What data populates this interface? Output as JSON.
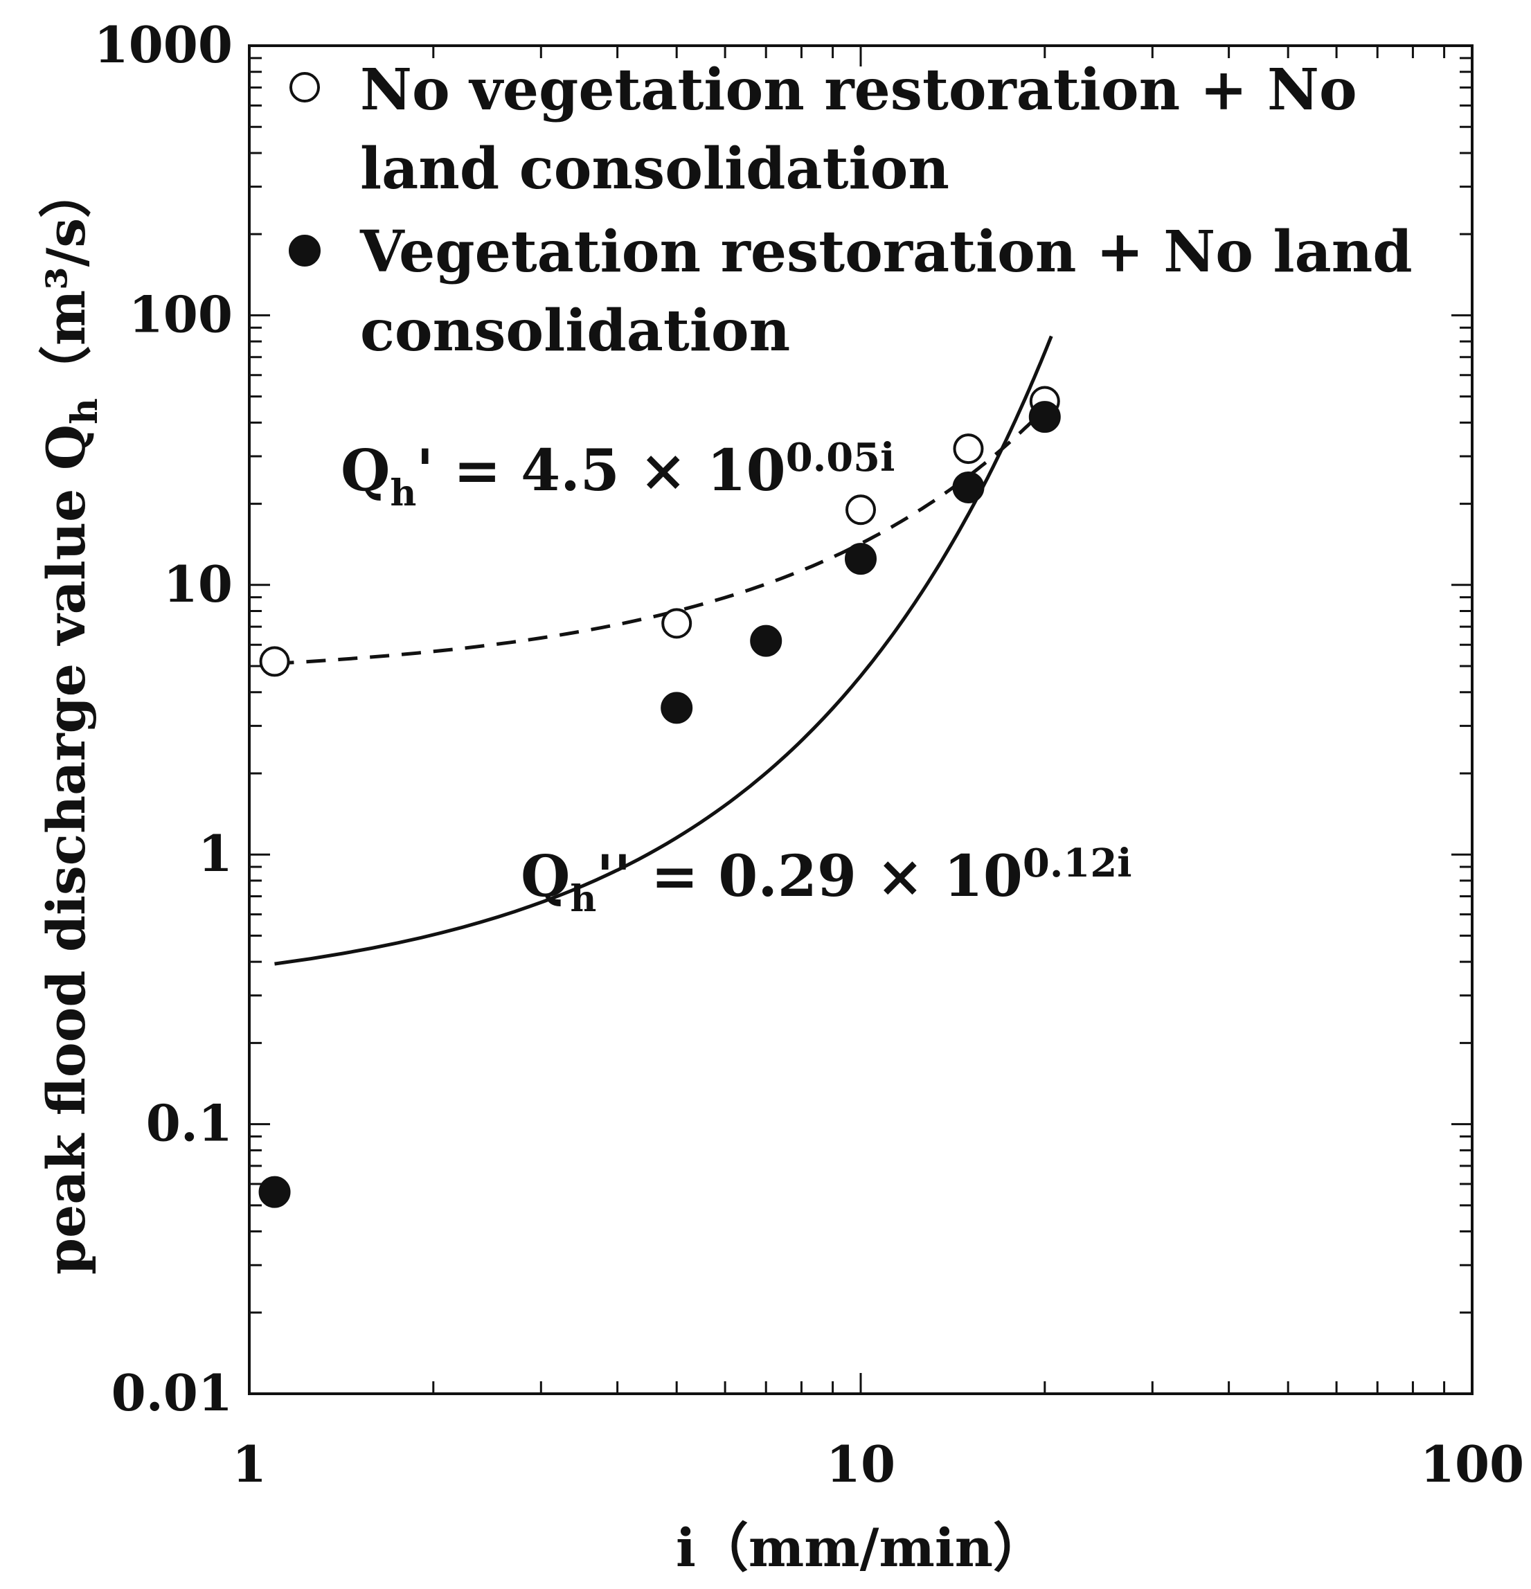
{
  "chart_data": {
    "type": "scatter",
    "x_scale": "log",
    "y_scale": "log",
    "xlim": [
      1,
      100
    ],
    "ylim": [
      0.01,
      1000
    ],
    "x_ticks": [
      {
        "value": 1,
        "label": "1"
      },
      {
        "value": 10,
        "label": "10"
      },
      {
        "value": 100,
        "label": "100"
      }
    ],
    "y_ticks": [
      {
        "value": 0.01,
        "label": "0.01"
      },
      {
        "value": 0.1,
        "label": "0.1"
      },
      {
        "value": 1,
        "label": "1"
      },
      {
        "value": 10,
        "label": "10"
      },
      {
        "value": 100,
        "label": "100"
      },
      {
        "value": 1000,
        "label": "1000"
      }
    ],
    "xlabel": "i（mm/min）",
    "ylabel": {
      "main": "peak flood discharge value  Q",
      "sub": "h",
      "units": "（m³/s）"
    },
    "grid": false,
    "legend_position": "top-left",
    "series": [
      {
        "name": "No vegetation restoration + No land consolidation",
        "legend_lines": [
          "No vegetation restoration  + No",
          "land consolidation"
        ],
        "marker": "open-circle",
        "color": "#111111",
        "points": [
          {
            "x": 1.1,
            "y": 5.2
          },
          {
            "x": 5,
            "y": 7.2
          },
          {
            "x": 10,
            "y": 19
          },
          {
            "x": 15,
            "y": 32
          },
          {
            "x": 20,
            "y": 48
          }
        ]
      },
      {
        "name": "Vegetation restoration + No land consolidation",
        "legend_lines": [
          "Vegetation restoration + No land",
          "consolidation"
        ],
        "marker": "filled-circle",
        "color": "#111111",
        "points": [
          {
            "x": 1.1,
            "y": 0.056
          },
          {
            "x": 5,
            "y": 3.5
          },
          {
            "x": 7,
            "y": 6.2
          },
          {
            "x": 10,
            "y": 12.5
          },
          {
            "x": 15,
            "y": 23
          },
          {
            "x": 20,
            "y": 42
          }
        ]
      }
    ],
    "fits": [
      {
        "name": "dashed-fit",
        "style": "dashed",
        "a": 4.5,
        "b": 0.05,
        "x_range": [
          1.1,
          20
        ],
        "label": {
          "base": "Q",
          "sub": "h",
          "rest": "' = 4.5 × 10",
          "sup": "0.05i"
        }
      },
      {
        "name": "solid-fit",
        "style": "solid",
        "a": 0.29,
        "b": 0.12,
        "x_range": [
          1.1,
          20.5
        ],
        "label": {
          "base": "Q",
          "sub": "h",
          "rest": "'' = 0.29 × 10",
          "sup": "0.12i"
        }
      }
    ]
  }
}
